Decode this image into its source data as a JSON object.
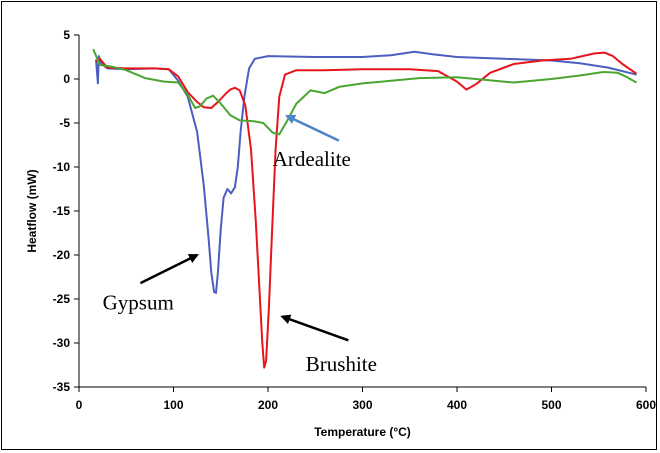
{
  "chart_data": {
    "type": "line",
    "title": "",
    "xlabel": "Temperature (°C)",
    "ylabel": "Heatflow (mW)",
    "xlim": [
      0,
      600
    ],
    "ylim": [
      -35,
      5
    ],
    "xticks": [
      0,
      100,
      200,
      300,
      400,
      500,
      600
    ],
    "yticks": [
      5,
      0,
      -5,
      -10,
      -15,
      -20,
      -25,
      -30,
      -35
    ],
    "grid": false,
    "legend": "none",
    "series": [
      {
        "label": "Gypsum",
        "color": "#4a5fc1",
        "points": [
          [
            18,
            2.2
          ],
          [
            20,
            -0.5
          ],
          [
            21,
            2.6
          ],
          [
            23,
            1.8
          ],
          [
            30,
            1.2
          ],
          [
            50,
            1.1
          ],
          [
            80,
            1.2
          ],
          [
            95,
            1.1
          ],
          [
            105,
            -0.2
          ],
          [
            115,
            -2.0
          ],
          [
            125,
            -6.0
          ],
          [
            132,
            -12.0
          ],
          [
            137,
            -18.0
          ],
          [
            140,
            -22.0
          ],
          [
            143,
            -24.2
          ],
          [
            145,
            -24.3
          ],
          [
            147,
            -22.0
          ],
          [
            150,
            -17.0
          ],
          [
            153,
            -13.5
          ],
          [
            157,
            -12.5
          ],
          [
            161,
            -13.0
          ],
          [
            165,
            -12.3
          ],
          [
            168,
            -10.0
          ],
          [
            171,
            -6.0
          ],
          [
            175,
            -2.0
          ],
          [
            180,
            1.2
          ],
          [
            186,
            2.3
          ],
          [
            200,
            2.6
          ],
          [
            250,
            2.5
          ],
          [
            300,
            2.5
          ],
          [
            330,
            2.7
          ],
          [
            355,
            3.1
          ],
          [
            375,
            2.8
          ],
          [
            400,
            2.5
          ],
          [
            450,
            2.3
          ],
          [
            500,
            2.1
          ],
          [
            530,
            1.8
          ],
          [
            560,
            1.3
          ],
          [
            590,
            0.5
          ]
        ]
      },
      {
        "label": "Brushite",
        "color": "#e8141b",
        "points": [
          [
            18,
            2.0
          ],
          [
            22,
            2.3
          ],
          [
            30,
            1.3
          ],
          [
            50,
            1.2
          ],
          [
            80,
            1.2
          ],
          [
            95,
            1.1
          ],
          [
            105,
            0.3
          ],
          [
            115,
            -1.5
          ],
          [
            125,
            -2.6
          ],
          [
            132,
            -3.2
          ],
          [
            140,
            -3.3
          ],
          [
            148,
            -2.5
          ],
          [
            155,
            -1.7
          ],
          [
            160,
            -1.2
          ],
          [
            165,
            -1.0
          ],
          [
            170,
            -1.3
          ],
          [
            176,
            -3.0
          ],
          [
            182,
            -8.0
          ],
          [
            187,
            -16.0
          ],
          [
            191,
            -24.0
          ],
          [
            194,
            -30.0
          ],
          [
            196,
            -32.8
          ],
          [
            198,
            -32.0
          ],
          [
            201,
            -26.0
          ],
          [
            204,
            -18.0
          ],
          [
            208,
            -8.0
          ],
          [
            212,
            -2.0
          ],
          [
            218,
            0.5
          ],
          [
            230,
            1.0
          ],
          [
            260,
            1.0
          ],
          [
            300,
            1.1
          ],
          [
            350,
            1.1
          ],
          [
            380,
            0.9
          ],
          [
            400,
            -0.3
          ],
          [
            410,
            -1.2
          ],
          [
            420,
            -0.6
          ],
          [
            435,
            0.7
          ],
          [
            460,
            1.7
          ],
          [
            490,
            2.1
          ],
          [
            520,
            2.3
          ],
          [
            545,
            2.9
          ],
          [
            556,
            3.0
          ],
          [
            565,
            2.6
          ],
          [
            575,
            1.7
          ],
          [
            590,
            0.6
          ]
        ]
      },
      {
        "label": "Ardealite",
        "color": "#4aa631",
        "points": [
          [
            15,
            3.4
          ],
          [
            22,
            1.6
          ],
          [
            35,
            1.4
          ],
          [
            50,
            1.0
          ],
          [
            70,
            0.1
          ],
          [
            90,
            -0.3
          ],
          [
            105,
            -0.4
          ],
          [
            115,
            -1.8
          ],
          [
            123,
            -3.3
          ],
          [
            128,
            -3.1
          ],
          [
            135,
            -2.2
          ],
          [
            142,
            -1.9
          ],
          [
            150,
            -2.8
          ],
          [
            160,
            -4.1
          ],
          [
            170,
            -4.7
          ],
          [
            185,
            -4.8
          ],
          [
            195,
            -5.0
          ],
          [
            205,
            -6.1
          ],
          [
            212,
            -6.3
          ],
          [
            220,
            -4.8
          ],
          [
            230,
            -2.8
          ],
          [
            245,
            -1.3
          ],
          [
            260,
            -1.6
          ],
          [
            275,
            -0.9
          ],
          [
            300,
            -0.5
          ],
          [
            330,
            -0.2
          ],
          [
            360,
            0.1
          ],
          [
            400,
            0.2
          ],
          [
            430,
            -0.1
          ],
          [
            460,
            -0.4
          ],
          [
            500,
            0.0
          ],
          [
            530,
            0.4
          ],
          [
            555,
            0.8
          ],
          [
            570,
            0.7
          ],
          [
            580,
            0.2
          ],
          [
            590,
            -0.4
          ]
        ]
      }
    ],
    "annotations": [
      {
        "text": "Ardealite",
        "tx": 205,
        "ty": -9.9,
        "arrow_color": "#4a85c8",
        "from": [
          275,
          -7.0
        ],
        "to": [
          220,
          -4.2
        ]
      },
      {
        "text": "Gypsum",
        "tx": 25,
        "ty": -26.2,
        "arrow_color": "#000000",
        "from": [
          65,
          -23.2
        ],
        "to": [
          125,
          -20.0
        ]
      },
      {
        "text": "Brushite",
        "tx": 240,
        "ty": -33.2,
        "arrow_color": "#000000",
        "from": [
          285,
          -29.7
        ],
        "to": [
          215,
          -27.0
        ]
      }
    ]
  }
}
